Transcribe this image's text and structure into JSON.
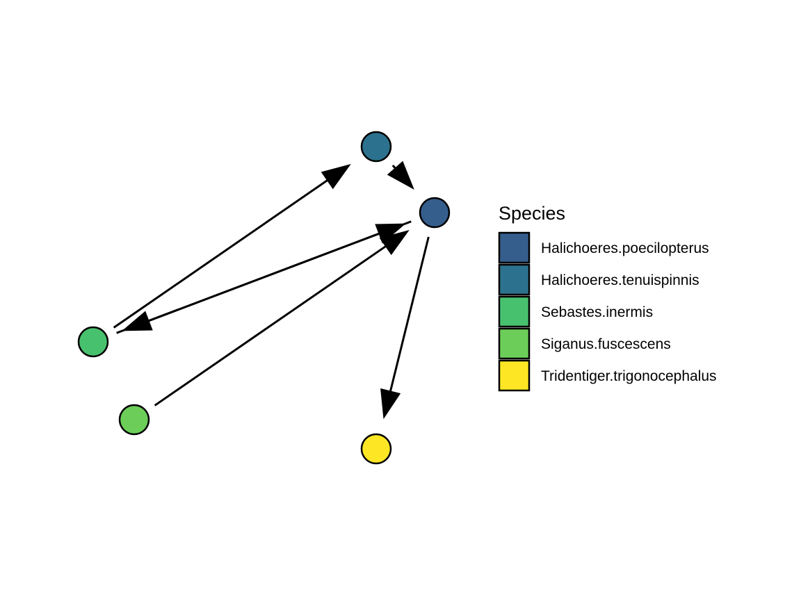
{
  "legend": {
    "title": "Species",
    "items": [
      {
        "label": "Halichoeres.poecilopterus",
        "color": "#355E8D"
      },
      {
        "label": "Halichoeres.tenuispinnis",
        "color": "#2C728E"
      },
      {
        "label": "Sebastes.inermis",
        "color": "#48C16E"
      },
      {
        "label": "Siganus.fuscescens",
        "color": "#6CCE59"
      },
      {
        "label": "Tridentiger.trigonocephalus",
        "color": "#FDE725"
      }
    ]
  },
  "nodes": [
    {
      "id": "Halichoeres.poecilopterus",
      "color": "#355E8D"
    },
    {
      "id": "Halichoeres.tenuispinnis",
      "color": "#2C728E"
    },
    {
      "id": "Sebastes.inermis",
      "color": "#48C16E"
    },
    {
      "id": "Siganus.fuscescens",
      "color": "#6CCE59"
    },
    {
      "id": "Tridentiger.trigonocephalus",
      "color": "#FDE725"
    }
  ],
  "edges": [
    {
      "from": "Sebastes.inermis",
      "to": "Halichoeres.tenuispinnis"
    },
    {
      "from": "Halichoeres.tenuispinnis",
      "to": "Halichoeres.poecilopterus"
    },
    {
      "from": "Halichoeres.poecilopterus",
      "to": "Sebastes.inermis"
    },
    {
      "from": "Sebastes.inermis",
      "to": "Halichoeres.poecilopterus"
    },
    {
      "from": "Siganus.fuscescens",
      "to": "Halichoeres.poecilopterus"
    },
    {
      "from": "Halichoeres.poecilopterus",
      "to": "Tridentiger.trigonocephalus"
    }
  ]
}
